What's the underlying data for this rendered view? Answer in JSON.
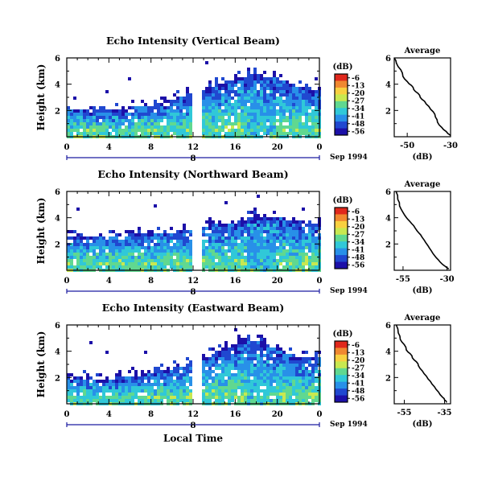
{
  "colorbar": {
    "unit": "(dB)",
    "levels": [
      "-6",
      "-13",
      "-20",
      "-27",
      "-34",
      "-41",
      "-48",
      "-56"
    ],
    "colors": [
      "#e0281c",
      "#f08830",
      "#f8d040",
      "#c8e850",
      "#60d890",
      "#30c8d8",
      "#2890e8",
      "#2048d0",
      "#1c10a8"
    ]
  },
  "labels": {
    "ylabel": "Height (km)",
    "date": "Sep 1994",
    "day": "8",
    "xlabel": "Local Time",
    "profile_title": "Average",
    "profile_xlabel": "(dB)"
  },
  "chart_data": [
    {
      "type": "heatmap",
      "title": "Echo Intensity (Vertical Beam)",
      "x_ticks": [
        "0",
        "4",
        "8",
        "12",
        "16",
        "20",
        "0"
      ],
      "xlim": [
        0,
        24
      ],
      "y_ticks": [
        "2",
        "4",
        "6"
      ],
      "ylim": [
        0,
        6
      ],
      "data_gap_hours": [
        12,
        12.8
      ],
      "echo_top_km": [
        [
          0,
          2.2
        ],
        [
          4,
          2.0
        ],
        [
          8,
          2.4
        ],
        [
          11.5,
          3.2
        ],
        [
          13,
          3.6
        ],
        [
          16,
          4.4
        ],
        [
          18,
          4.8
        ],
        [
          20,
          4.4
        ],
        [
          22,
          3.8
        ],
        [
          24,
          3.6
        ]
      ]
    },
    {
      "type": "line",
      "title": "Average",
      "x_ticks": [
        "-50",
        "-30"
      ],
      "xlim": [
        -56,
        -30
      ],
      "y_ticks": [
        "2",
        "4",
        "6"
      ],
      "ylim": [
        0,
        6
      ],
      "xlabel": "(dB)",
      "x": [
        -56,
        -55,
        -53,
        -52,
        -50,
        -48,
        -47,
        -45,
        -44,
        -42,
        -40,
        -38,
        -37,
        -36,
        -34,
        -32,
        -30
      ],
      "y": [
        6.0,
        5.6,
        5.1,
        4.6,
        4.2,
        3.9,
        3.6,
        3.3,
        3.0,
        2.7,
        2.3,
        1.9,
        1.5,
        1.1,
        0.7,
        0.4,
        0.1
      ]
    },
    {
      "type": "heatmap",
      "title": "Echo Intensity (Northward Beam)",
      "x_ticks": [
        "0",
        "4",
        "8",
        "12",
        "16",
        "20",
        "0"
      ],
      "xlim": [
        0,
        24
      ],
      "y_ticks": [
        "2",
        "4",
        "6"
      ],
      "ylim": [
        0,
        6
      ],
      "data_gap_hours": [
        12,
        12.8
      ],
      "echo_top_km": [
        [
          0,
          2.5
        ],
        [
          4,
          2.6
        ],
        [
          8,
          2.8
        ],
        [
          11.5,
          3.0
        ],
        [
          13,
          3.4
        ],
        [
          16,
          3.6
        ],
        [
          18,
          4.2
        ],
        [
          20,
          4.0
        ],
        [
          22,
          3.7
        ],
        [
          24,
          3.6
        ]
      ]
    },
    {
      "type": "line",
      "title": "Average",
      "x_ticks": [
        "-55",
        "-30"
      ],
      "xlim": [
        -60,
        -28
      ],
      "y_ticks": [
        "2",
        "4",
        "6"
      ],
      "ylim": [
        0,
        6
      ],
      "xlabel": "(dB)",
      "x": [
        -59,
        -58,
        -57,
        -55,
        -53,
        -51,
        -49,
        -47,
        -45,
        -43,
        -41,
        -39,
        -37,
        -35,
        -33,
        -31,
        -29
      ],
      "y": [
        6.0,
        5.4,
        4.9,
        4.4,
        4.0,
        3.7,
        3.4,
        3.0,
        2.7,
        2.3,
        1.9,
        1.5,
        1.1,
        0.8,
        0.5,
        0.3,
        0.1
      ]
    },
    {
      "type": "heatmap",
      "title": "Echo Intensity (Eastward Beam)",
      "x_ticks": [
        "0",
        "4",
        "8",
        "12",
        "16",
        "20",
        "0"
      ],
      "xlim": [
        0,
        24
      ],
      "y_ticks": [
        "2",
        "4",
        "6"
      ],
      "ylim": [
        0,
        6
      ],
      "data_gap_hours": [
        12,
        12.8
      ],
      "echo_top_km": [
        [
          0,
          2.0
        ],
        [
          4,
          1.9
        ],
        [
          8,
          2.3
        ],
        [
          11.5,
          3.0
        ],
        [
          13,
          3.5
        ],
        [
          16,
          4.6
        ],
        [
          18,
          4.9
        ],
        [
          20,
          4.2
        ],
        [
          22,
          3.6
        ],
        [
          24,
          3.6
        ]
      ]
    },
    {
      "type": "line",
      "title": "Average",
      "x_ticks": [
        "-55",
        "-35"
      ],
      "xlim": [
        -60,
        -32
      ],
      "y_ticks": [
        "2",
        "4",
        "6"
      ],
      "ylim": [
        0,
        6
      ],
      "xlabel": "(dB)",
      "x": [
        -59,
        -58,
        -57,
        -55,
        -54,
        -52,
        -51,
        -49,
        -48,
        -46,
        -44,
        -42,
        -40,
        -38,
        -36,
        -35,
        -34
      ],
      "y": [
        6.0,
        5.4,
        4.9,
        4.5,
        4.1,
        3.8,
        3.5,
        3.2,
        2.9,
        2.5,
        2.1,
        1.7,
        1.3,
        0.9,
        0.5,
        0.3,
        0.1
      ]
    }
  ]
}
